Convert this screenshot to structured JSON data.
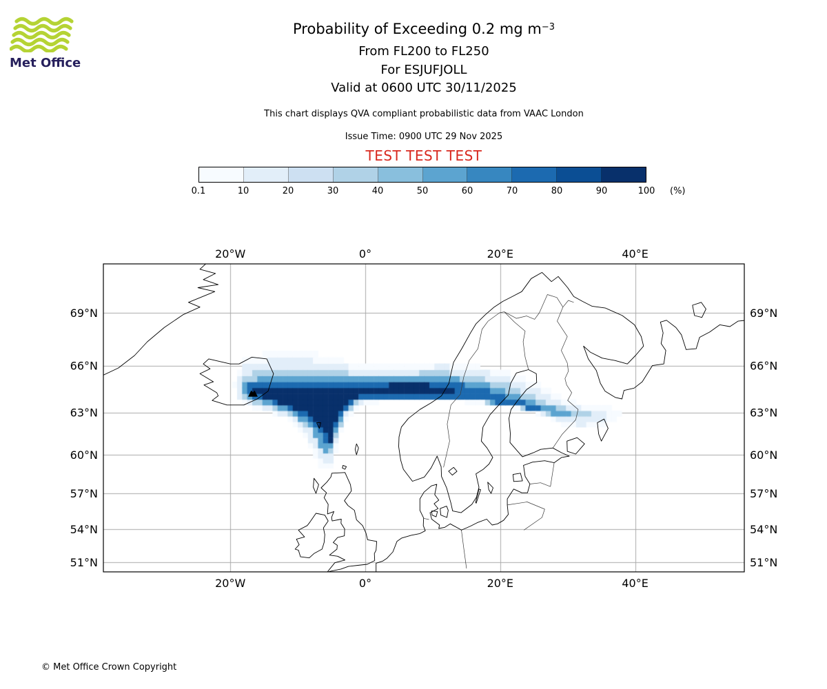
{
  "header": {
    "logo_text": "Met Office",
    "title_main": "Probability of Exceeding 0.2 mg m",
    "title_sup": "−3",
    "subtitle1": "From FL200 to FL250",
    "subtitle2": "For ESJUFJOLL",
    "subtitle3": "Valid at 0600 UTC 30/11/2025",
    "note": "This chart displays QVA compliant probabilistic data from VAAC London",
    "issue_time": "Issue Time: 0900 UTC 29 Nov 2025",
    "test_banner": "TEST TEST TEST"
  },
  "colors": {
    "test_red": "#d8281e",
    "logo_green": "#b5d334",
    "logo_navy": "#261f5c",
    "grid_gray": "#a8a8a8",
    "coast_black": "#000000"
  },
  "colorbar": {
    "tick_labels": [
      "0.1",
      "10",
      "20",
      "30",
      "40",
      "50",
      "60",
      "70",
      "80",
      "90",
      "100"
    ],
    "unit": "(%)",
    "colors": [
      "#f7fbff",
      "#e2eef9",
      "#cde0f2",
      "#b0d2e7",
      "#89bfdd",
      "#5ca4d0",
      "#3787c0",
      "#1c6ab0",
      "#0b4e94",
      "#08306b"
    ]
  },
  "map": {
    "lon_ticks": [
      {
        "label": "20°W",
        "lon": -20
      },
      {
        "label": "0°",
        "lon": 0
      },
      {
        "label": "20°E",
        "lon": 20
      },
      {
        "label": "40°E",
        "lon": 40
      }
    ],
    "lat_ticks": [
      {
        "label": "69°N",
        "lat": 69
      },
      {
        "label": "66°N",
        "lat": 66
      },
      {
        "label": "63°N",
        "lat": 63
      },
      {
        "label": "60°N",
        "lat": 60
      },
      {
        "label": "57°N",
        "lat": 57
      },
      {
        "label": "54°N",
        "lat": 54
      },
      {
        "label": "51°N",
        "lat": 51
      }
    ]
  },
  "footer": {
    "copyright": "© Met Office Crown Copyright"
  },
  "chart_data": {
    "type": "heatmap",
    "title": "Probability of Exceeding 0.2 mg m-3",
    "subtitle": "From FL200 to FL250, For ESJUFJOLL, Valid at 0600 UTC 30/11/2025",
    "units": "%",
    "levels_percent": [
      0.1,
      10,
      20,
      30,
      40,
      50,
      60,
      70,
      80,
      90,
      100
    ],
    "projection": "Mercator",
    "lon_range": [
      -38.8,
      56.2
    ],
    "lat_range": [
      50.1,
      71.5
    ],
    "lon_gridlines": [
      -20,
      0,
      20,
      40
    ],
    "lat_gridlines": [
      51,
      54,
      57,
      60,
      63,
      66,
      69
    ],
    "grid_cell_deg": {
      "lon": 0.75,
      "lat": 0.375
    },
    "source_volcano": {
      "name": "ESJUFJOLL",
      "lat": 64.27,
      "lon": -16.65
    },
    "plume_description": "Ash probability plume from Esjufjoll (SE Iceland) with >90% core extending east along ~64.5N across the Norwegian Sea and Scandinavia, a high-probability fan sweeping south to ~60N near 5W, and a tail decreasing to <10% curving southeast to ~63N 38E over NW Russia.",
    "contours": [
      {
        "level_percent": 0.1,
        "color_index": 0,
        "polygon": [
          [
            -18.0,
            66.4
          ],
          [
            -13.0,
            66.9
          ],
          [
            -8.0,
            66.8
          ],
          [
            -3.0,
            66.3
          ],
          [
            2.0,
            66.0
          ],
          [
            7.0,
            66.0
          ],
          [
            11.0,
            66.3
          ],
          [
            15.0,
            66.1
          ],
          [
            19.0,
            65.8
          ],
          [
            23.0,
            65.4
          ],
          [
            26.0,
            64.8
          ],
          [
            28.5,
            64.2
          ],
          [
            31.0,
            63.7
          ],
          [
            34.0,
            63.4
          ],
          [
            36.8,
            63.3
          ],
          [
            38.2,
            62.9
          ],
          [
            36.5,
            62.3
          ],
          [
            33.5,
            61.9
          ],
          [
            31.0,
            61.85
          ],
          [
            28.5,
            62.3
          ],
          [
            25.5,
            62.9
          ],
          [
            22.0,
            63.3
          ],
          [
            18.0,
            63.55
          ],
          [
            13.0,
            63.75
          ],
          [
            8.0,
            63.8
          ],
          [
            3.0,
            63.75
          ],
          [
            -0.5,
            63.55
          ],
          [
            -2.5,
            62.7
          ],
          [
            -3.8,
            61.3
          ],
          [
            -4.6,
            59.9
          ],
          [
            -5.0,
            58.9
          ],
          [
            -6.4,
            58.8
          ],
          [
            -7.6,
            59.9
          ],
          [
            -9.0,
            61.3
          ],
          [
            -11.5,
            62.5
          ],
          [
            -14.5,
            63.1
          ],
          [
            -17.3,
            63.4
          ],
          [
            -19.0,
            63.8
          ],
          [
            -19.5,
            64.8
          ],
          [
            -18.8,
            65.8
          ]
        ]
      },
      {
        "level_percent": 10,
        "color_index": 1,
        "polygon": [
          [
            -17.8,
            66.0
          ],
          [
            -13.0,
            66.5
          ],
          [
            -8.5,
            66.4
          ],
          [
            -3.5,
            66.0
          ],
          [
            2.0,
            65.7
          ],
          [
            7.0,
            65.75
          ],
          [
            11.0,
            66.0
          ],
          [
            15.0,
            65.8
          ],
          [
            19.0,
            65.5
          ],
          [
            22.5,
            65.1
          ],
          [
            25.5,
            64.5
          ],
          [
            28.0,
            63.9
          ],
          [
            30.5,
            63.5
          ],
          [
            33.0,
            63.2
          ],
          [
            35.5,
            63.1
          ],
          [
            36.5,
            62.8
          ],
          [
            34.5,
            62.35
          ],
          [
            31.5,
            62.1
          ],
          [
            28.8,
            62.5
          ],
          [
            25.8,
            63.0
          ],
          [
            22.0,
            63.45
          ],
          [
            18.0,
            63.7
          ],
          [
            13.0,
            63.85
          ],
          [
            8.0,
            63.9
          ],
          [
            3.0,
            63.85
          ],
          [
            -0.8,
            63.65
          ],
          [
            -2.8,
            62.8
          ],
          [
            -4.0,
            61.4
          ],
          [
            -4.8,
            60.1
          ],
          [
            -5.2,
            59.3
          ],
          [
            -6.2,
            59.2
          ],
          [
            -7.2,
            60.2
          ],
          [
            -8.6,
            61.5
          ],
          [
            -11.0,
            62.6
          ],
          [
            -14.3,
            63.25
          ],
          [
            -17.2,
            63.55
          ],
          [
            -18.7,
            64.0
          ],
          [
            -19.1,
            64.8
          ],
          [
            -18.5,
            65.6
          ]
        ]
      },
      {
        "level_percent": 30,
        "color_index": 3,
        "polygon": [
          [
            -17.5,
            65.5
          ],
          [
            -13.5,
            65.9
          ],
          [
            -9.0,
            65.8
          ],
          [
            -4.0,
            65.6
          ],
          [
            1.0,
            65.45
          ],
          [
            6.0,
            65.5
          ],
          [
            10.0,
            65.65
          ],
          [
            14.0,
            65.5
          ],
          [
            18.0,
            65.2
          ],
          [
            21.5,
            64.8
          ],
          [
            24.5,
            64.2
          ],
          [
            27.0,
            63.7
          ],
          [
            29.5,
            63.35
          ],
          [
            32.0,
            63.1
          ],
          [
            33.9,
            62.95
          ],
          [
            32.5,
            62.6
          ],
          [
            30.0,
            62.6
          ],
          [
            27.0,
            62.9
          ],
          [
            23.5,
            63.3
          ],
          [
            19.5,
            63.6
          ],
          [
            15.0,
            63.8
          ],
          [
            10.0,
            63.9
          ],
          [
            4.0,
            63.9
          ],
          [
            -1.0,
            63.7
          ],
          [
            -3.0,
            62.9
          ],
          [
            -4.2,
            61.5
          ],
          [
            -5.0,
            60.3
          ],
          [
            -5.6,
            59.9
          ],
          [
            -6.6,
            60.6
          ],
          [
            -8.0,
            61.8
          ],
          [
            -10.5,
            62.8
          ],
          [
            -13.9,
            63.4
          ],
          [
            -16.9,
            63.7
          ],
          [
            -18.4,
            64.2
          ],
          [
            -18.5,
            65.0
          ]
        ]
      },
      {
        "level_percent": 50,
        "color_index": 5,
        "polygon": [
          [
            -17.3,
            65.1
          ],
          [
            -13.5,
            65.45
          ],
          [
            -9.0,
            65.35
          ],
          [
            -4.0,
            65.25
          ],
          [
            1.0,
            65.2
          ],
          [
            6.0,
            65.3
          ],
          [
            10.0,
            65.4
          ],
          [
            14.0,
            65.2
          ],
          [
            17.5,
            64.9
          ],
          [
            20.5,
            64.55
          ],
          [
            23.0,
            64.1
          ],
          [
            25.5,
            63.7
          ],
          [
            27.8,
            63.4
          ],
          [
            29.9,
            63.15
          ],
          [
            31.0,
            63.0
          ],
          [
            29.2,
            62.8
          ],
          [
            26.5,
            63.05
          ],
          [
            23.0,
            63.4
          ],
          [
            19.0,
            63.65
          ],
          [
            14.5,
            63.85
          ],
          [
            9.0,
            63.95
          ],
          [
            3.0,
            63.95
          ],
          [
            -1.3,
            63.75
          ],
          [
            -3.2,
            63.0
          ],
          [
            -4.4,
            61.7
          ],
          [
            -5.3,
            60.3
          ],
          [
            -5.9,
            60.0
          ],
          [
            -7.0,
            61.0
          ],
          [
            -8.5,
            62.1
          ],
          [
            -11.0,
            63.0
          ],
          [
            -14.0,
            63.5
          ],
          [
            -16.7,
            63.85
          ],
          [
            -18.1,
            64.35
          ],
          [
            -18.1,
            64.85
          ]
        ]
      },
      {
        "level_percent": 70,
        "color_index": 7,
        "polygon": [
          [
            -17.1,
            64.85
          ],
          [
            -13.5,
            65.1
          ],
          [
            -9.0,
            65.0
          ],
          [
            -4.0,
            64.95
          ],
          [
            1.0,
            64.95
          ],
          [
            6.0,
            65.05
          ],
          [
            10.0,
            65.1
          ],
          [
            13.5,
            64.9
          ],
          [
            16.5,
            64.65
          ],
          [
            19.0,
            64.35
          ],
          [
            21.5,
            64.0
          ],
          [
            24.0,
            63.6
          ],
          [
            26.0,
            63.35
          ],
          [
            24.8,
            63.2
          ],
          [
            22.0,
            63.5
          ],
          [
            18.5,
            63.75
          ],
          [
            14.0,
            63.95
          ],
          [
            8.5,
            64.05
          ],
          [
            2.5,
            64.05
          ],
          [
            -1.6,
            63.8
          ],
          [
            -3.4,
            63.1
          ],
          [
            -4.7,
            61.8
          ],
          [
            -5.5,
            60.7
          ],
          [
            -6.5,
            61.4
          ],
          [
            -8.1,
            62.35
          ],
          [
            -10.8,
            63.15
          ],
          [
            -13.8,
            63.65
          ],
          [
            -16.5,
            64.0
          ],
          [
            -17.7,
            64.4
          ]
        ]
      },
      {
        "level_percent": 90,
        "color_index": 9,
        "polygon": [
          [
            -16.9,
            64.62
          ],
          [
            -13.5,
            64.78
          ],
          [
            -9.5,
            64.72
          ],
          [
            -5.0,
            64.7
          ],
          [
            0.0,
            64.75
          ],
          [
            5.0,
            64.85
          ],
          [
            9.0,
            64.85
          ],
          [
            11.5,
            64.7
          ],
          [
            13.6,
            64.45
          ],
          [
            12.0,
            64.25
          ],
          [
            9.0,
            64.4
          ],
          [
            4.0,
            64.35
          ],
          [
            -0.5,
            64.2
          ],
          [
            -2.9,
            63.6
          ],
          [
            -4.3,
            62.5
          ],
          [
            -5.2,
            60.9
          ],
          [
            -6.2,
            62.0
          ],
          [
            -8.3,
            62.85
          ],
          [
            -11.2,
            63.45
          ],
          [
            -14.2,
            63.85
          ],
          [
            -16.6,
            64.22
          ]
        ]
      }
    ]
  }
}
